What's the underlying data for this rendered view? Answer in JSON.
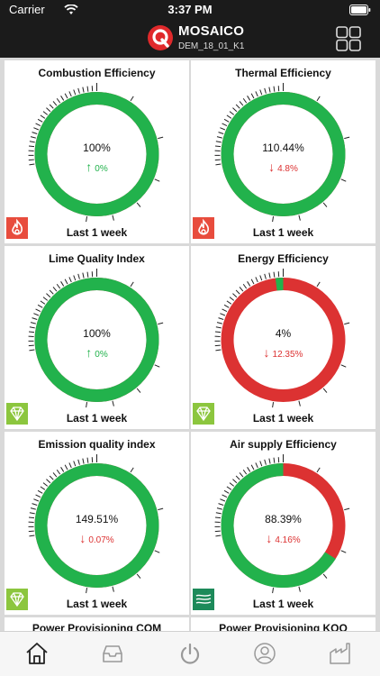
{
  "status_bar": {
    "carrier": "Carrier",
    "time": "3:37 PM"
  },
  "header": {
    "title": "MOSAICO",
    "subtitle": "DEM_18_01_K1"
  },
  "colors": {
    "green": "#22b24c",
    "red": "#dc3232",
    "dark": "#1b1b1b",
    "badge_fire": "#e84c3d",
    "badge_gem": "#8cc63e",
    "badge_air": "#1d8a5a"
  },
  "cards": [
    {
      "title": "Combustion Efficiency",
      "value": "100%",
      "delta": "0%",
      "direction": "up",
      "green_fraction": 1.0,
      "period": "Last 1 week",
      "badge_icon": "flame-icon"
    },
    {
      "title": "Thermal Efficiency",
      "value": "110.44%",
      "delta": "4.8%",
      "direction": "down",
      "green_fraction": 1.0,
      "period": "Last 1 week",
      "badge_icon": "flame-icon"
    },
    {
      "title": "Lime Quality Index",
      "value": "100%",
      "delta": "0%",
      "direction": "up",
      "green_fraction": 1.0,
      "period": "Last 1 week",
      "badge_icon": "gem-icon"
    },
    {
      "title": "Energy Efficiency",
      "value": "4%",
      "delta": "12.35%",
      "direction": "down",
      "green_fraction": 0.02,
      "period": "Last 1 week",
      "badge_icon": "gem-icon"
    },
    {
      "title": "Emission quality index",
      "value": "149.51%",
      "delta": "0.07%",
      "direction": "down",
      "green_fraction": 1.0,
      "period": "Last 1 week",
      "badge_icon": "gem-icon"
    },
    {
      "title": "Air supply Efficiency",
      "value": "88.39%",
      "delta": "4.16%",
      "direction": "down",
      "green_fraction": 0.66,
      "period": "Last 1 week",
      "badge_icon": "air-icon"
    }
  ],
  "partial_cards": [
    {
      "title": "Power Provisioning COM"
    },
    {
      "title": "Power Provisioning KOO"
    }
  ],
  "tabs": [
    {
      "name": "home-icon",
      "active": true
    },
    {
      "name": "inbox-icon",
      "active": false
    },
    {
      "name": "power-icon",
      "active": false
    },
    {
      "name": "user-icon",
      "active": false
    },
    {
      "name": "factory-icon",
      "active": false
    }
  ]
}
